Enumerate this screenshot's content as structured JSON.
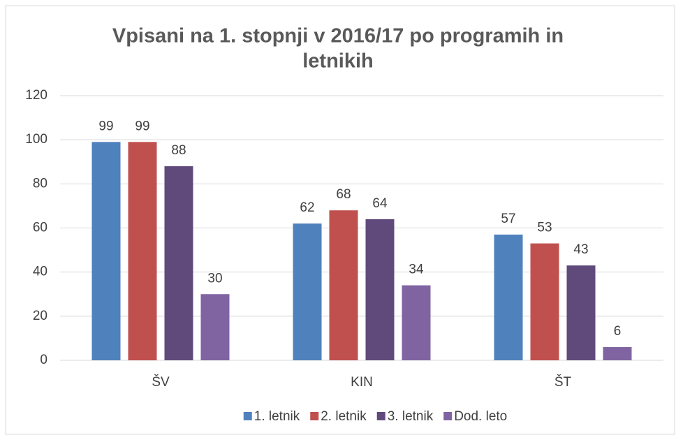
{
  "chart_data": {
    "type": "bar",
    "title": [
      "Vpisani na 1. stopnji v 2016/17 po programih in",
      "letnikih"
    ],
    "categories": [
      "ŠV",
      "KIN",
      "ŠT"
    ],
    "series": [
      {
        "name": "1. letnik",
        "color": "#4f81bd",
        "values": [
          99,
          62,
          57
        ]
      },
      {
        "name": "2. letnik",
        "color": "#c0504d",
        "values": [
          99,
          68,
          53
        ]
      },
      {
        "name": "3. letnik",
        "color": "#604a7b",
        "values": [
          88,
          64,
          43
        ]
      },
      {
        "name": "Dod. leto",
        "color": "#8064a2",
        "values": [
          30,
          34,
          6
        ]
      }
    ],
    "ylim": [
      0,
      120
    ],
    "yticks": [
      0,
      20,
      40,
      60,
      80,
      100,
      120
    ],
    "grid": true,
    "legend": "bottom"
  }
}
